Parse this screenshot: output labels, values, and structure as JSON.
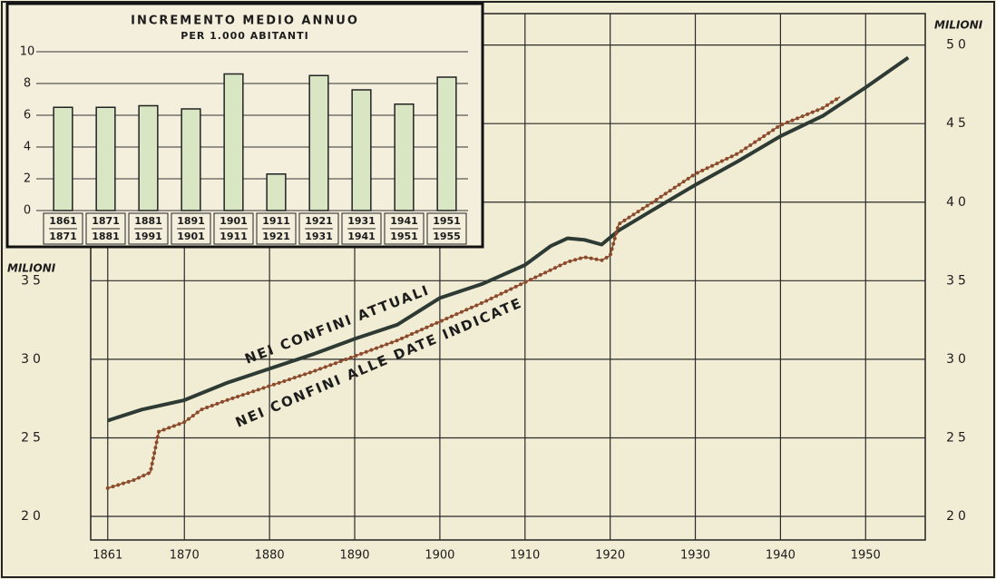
{
  "chart_data": [
    {
      "type": "line",
      "ylabel": "MILIONI",
      "y2label": "MILIONI",
      "xlim": [
        1859,
        1957
      ],
      "xticks": [
        1861,
        1870,
        1880,
        1890,
        1900,
        1910,
        1920,
        1930,
        1940,
        1950
      ],
      "ylim": [
        18.5,
        52
      ],
      "yticks": [
        20,
        25,
        30,
        35,
        40,
        45,
        50
      ],
      "grid": true,
      "annotations": [
        "NEI CONFINI ATTUALI",
        "NEI CONFINI ALLE DATE INDICATE"
      ],
      "series": [
        {
          "color": "#2d3b34",
          "x": [
            1861,
            1865,
            1870,
            1875,
            1880,
            1885,
            1890,
            1895,
            1900,
            1905,
            1910,
            1913,
            1915,
            1917,
            1919,
            1921,
            1925,
            1930,
            1935,
            1940,
            1945,
            1950,
            1955
          ],
          "values": [
            26.1,
            26.8,
            27.4,
            28.5,
            29.4,
            30.3,
            31.3,
            32.2,
            33.9,
            34.8,
            36.0,
            37.2,
            37.7,
            37.6,
            37.3,
            38.2,
            39.5,
            41.1,
            42.6,
            44.2,
            45.5,
            47.3,
            49.2
          ]
        },
        {
          "color": "#8b4a2b",
          "x": [
            1861,
            1864,
            1866,
            1867,
            1869,
            1870,
            1872,
            1875,
            1880,
            1885,
            1890,
            1895,
            1900,
            1905,
            1910,
            1915,
            1917,
            1919,
            1920,
            1921,
            1925,
            1930,
            1935,
            1940,
            1945,
            1947
          ],
          "values": [
            21.8,
            22.3,
            22.8,
            25.4,
            25.8,
            26.0,
            26.8,
            27.4,
            28.3,
            29.2,
            30.2,
            31.2,
            32.4,
            33.6,
            34.9,
            36.2,
            36.5,
            36.3,
            36.6,
            38.6,
            40.0,
            41.8,
            43.1,
            44.9,
            46.0,
            46.7
          ]
        }
      ]
    },
    {
      "type": "bar",
      "title": "INCREMENTO MEDIO ANNUO",
      "subtitle": "PER 1.000 ABITANTI",
      "categories": [
        [
          "1861",
          "1871"
        ],
        [
          "1871",
          "1881"
        ],
        [
          "1881",
          "1991"
        ],
        [
          "1891",
          "1901"
        ],
        [
          "1901",
          "1911"
        ],
        [
          "1911",
          "1921"
        ],
        [
          "1921",
          "1931"
        ],
        [
          "1931",
          "1941"
        ],
        [
          "1941",
          "1951"
        ],
        [
          "1951",
          "1955"
        ]
      ],
      "values": [
        6.5,
        6.5,
        6.6,
        6.4,
        8.6,
        2.3,
        8.5,
        7.6,
        6.7,
        8.4
      ],
      "color": "#d8e6c3",
      "ylim": [
        0,
        10
      ],
      "yticks": [
        0,
        2,
        4,
        6,
        8,
        10
      ],
      "grid": true
    }
  ]
}
